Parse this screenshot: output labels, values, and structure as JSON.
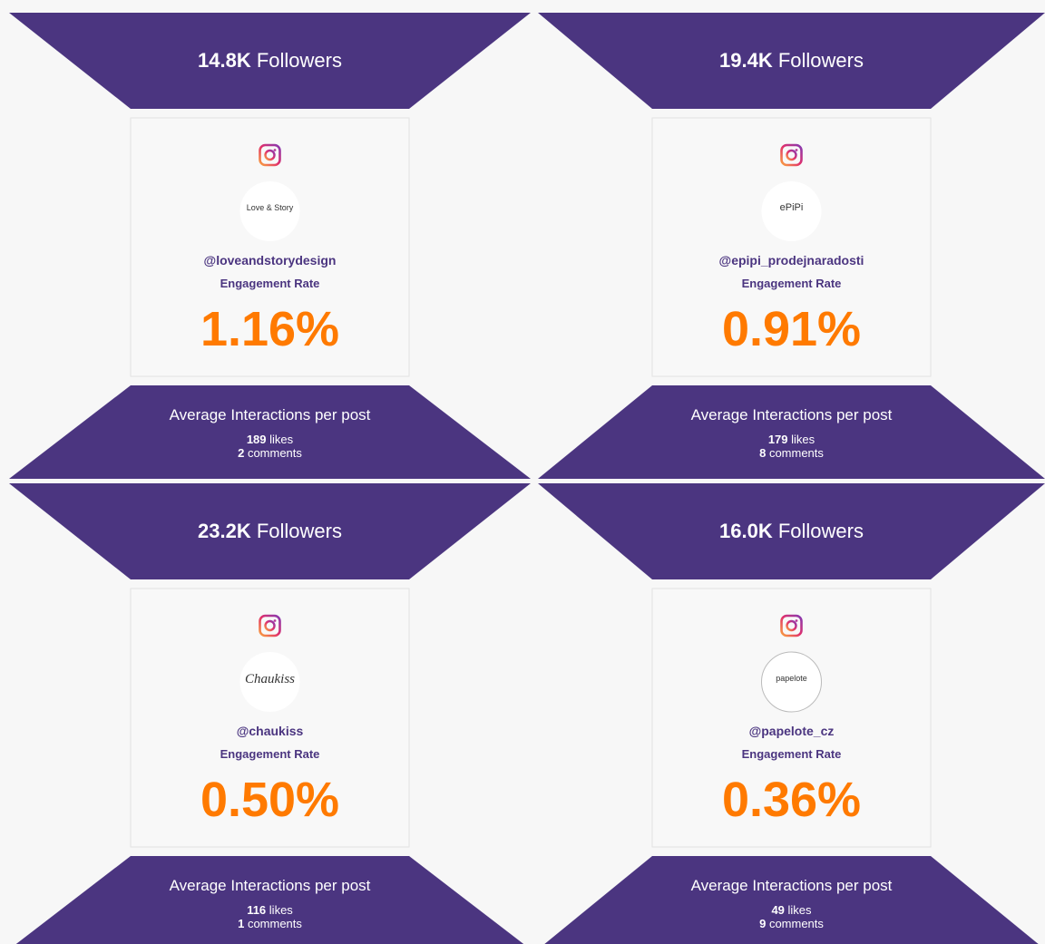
{
  "cards": [
    {
      "followers": "14.8K",
      "followers_label": "Followers",
      "avatar_text": "Love & Story",
      "handle": "@loveandstorydesign",
      "engagement_label": "Engagement Rate",
      "rate": "1.16%",
      "interactions_label": "Average Interactions per post",
      "likes": "189",
      "likes_label": "likes",
      "comments": "2",
      "comments_label": "comments"
    },
    {
      "followers": "19.4K",
      "followers_label": "Followers",
      "avatar_text": "ePiPi",
      "handle": "@epipi_prodejnaradosti",
      "engagement_label": "Engagement Rate",
      "rate": "0.91%",
      "interactions_label": "Average Interactions per post",
      "likes": "179",
      "likes_label": "likes",
      "comments": "8",
      "comments_label": "comments"
    },
    {
      "followers": "23.2K",
      "followers_label": "Followers",
      "avatar_text": "Chaukiss",
      "handle": "@chaukiss",
      "engagement_label": "Engagement Rate",
      "rate": "0.50%",
      "interactions_label": "Average Interactions per post",
      "likes": "116",
      "likes_label": "likes",
      "comments": "1",
      "comments_label": "comments"
    },
    {
      "followers": "16.0K",
      "followers_label": "Followers",
      "avatar_text": "papelote",
      "handle": "@papelote_cz",
      "engagement_label": "Engagement Rate",
      "rate": "0.36%",
      "interactions_label": "Average Interactions per post",
      "likes": "49",
      "likes_label": "likes",
      "comments": "9",
      "comments_label": "comments"
    }
  ]
}
